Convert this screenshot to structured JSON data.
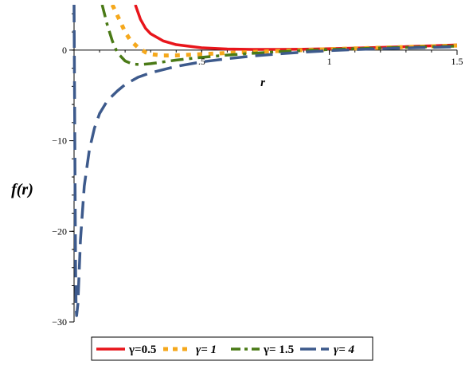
{
  "chart_data": {
    "type": "line",
    "xlabel": "r",
    "ylabel": "f(r)",
    "xlim": [
      0,
      1.5
    ],
    "ylim": [
      -30,
      5
    ],
    "x_ticks": [
      {
        "value": 0.5,
        "label": ".5"
      },
      {
        "value": 1,
        "label": "1"
      },
      {
        "value": 1.5,
        "label": "1.5"
      }
    ],
    "y_ticks": [
      {
        "value": 0,
        "label": "0"
      },
      {
        "value": -10,
        "label": "−10"
      },
      {
        "value": -20,
        "label": "−20"
      },
      {
        "value": -30,
        "label": "−30"
      }
    ],
    "grid": false,
    "legend_position": "bottom",
    "series": [
      {
        "name": "γ=0.5",
        "color": "#e8151b",
        "style": "solid",
        "x": [
          0.24,
          0.26,
          0.28,
          0.3,
          0.35,
          0.4,
          0.5,
          0.6,
          0.7,
          0.8,
          0.9,
          1.0,
          1.1,
          1.2,
          1.3,
          1.4,
          1.5
        ],
        "y": [
          5.0,
          3.4,
          2.4,
          1.8,
          1.0,
          0.6,
          0.25,
          0.12,
          0.08,
          0.08,
          0.1,
          0.15,
          0.22,
          0.3,
          0.38,
          0.47,
          0.57
        ]
      },
      {
        "name": "γ= 1",
        "color": "#f5a81c",
        "style": "dotted",
        "x": [
          0.15,
          0.18,
          0.2,
          0.22,
          0.25,
          0.28,
          0.3,
          0.35,
          0.4,
          0.5,
          0.6,
          0.7,
          0.8,
          0.9,
          1.0,
          1.1,
          1.2,
          1.3,
          1.4,
          1.5
        ],
        "y": [
          5.0,
          3.2,
          2.0,
          1.1,
          0.3,
          -0.25,
          -0.45,
          -0.6,
          -0.58,
          -0.45,
          -0.32,
          -0.2,
          -0.1,
          0.0,
          0.1,
          0.18,
          0.26,
          0.34,
          0.42,
          0.5
        ]
      },
      {
        "name": "γ= 1.5",
        "color": "#4a7a16",
        "style": "dash-dot",
        "x": [
          0.11,
          0.13,
          0.15,
          0.17,
          0.2,
          0.23,
          0.26,
          0.3,
          0.35,
          0.4,
          0.5,
          0.6,
          0.7,
          0.8,
          0.9,
          1.0,
          1.1,
          1.2,
          1.3,
          1.4,
          1.5
        ],
        "y": [
          5.0,
          2.8,
          1.0,
          -0.3,
          -1.2,
          -1.55,
          -1.6,
          -1.5,
          -1.3,
          -1.1,
          -0.8,
          -0.55,
          -0.35,
          -0.18,
          -0.05,
          0.06,
          0.15,
          0.23,
          0.3,
          0.37,
          0.43
        ]
      },
      {
        "name": "γ= 4",
        "color": "#3d5a8c",
        "style": "dashed",
        "x": [
          0.0,
          0.002,
          0.004,
          0.006,
          0.008,
          0.01,
          0.015,
          0.025,
          0.04,
          0.06,
          0.08,
          0.1,
          0.13,
          0.17,
          0.2,
          0.25,
          0.3,
          0.4,
          0.5,
          0.6,
          0.7,
          0.8,
          0.9,
          1.0,
          1.1,
          1.2,
          1.3,
          1.4,
          1.5
        ],
        "y": [
          5.0,
          -5.0,
          -15.0,
          -24.0,
          -28.5,
          -29.3,
          -28.0,
          -21.0,
          -15.0,
          -11.0,
          -8.6,
          -7.0,
          -5.6,
          -4.5,
          -3.8,
          -3.0,
          -2.5,
          -1.8,
          -1.3,
          -0.95,
          -0.65,
          -0.42,
          -0.22,
          -0.06,
          0.06,
          0.15,
          0.23,
          0.3,
          0.36
        ]
      }
    ]
  }
}
